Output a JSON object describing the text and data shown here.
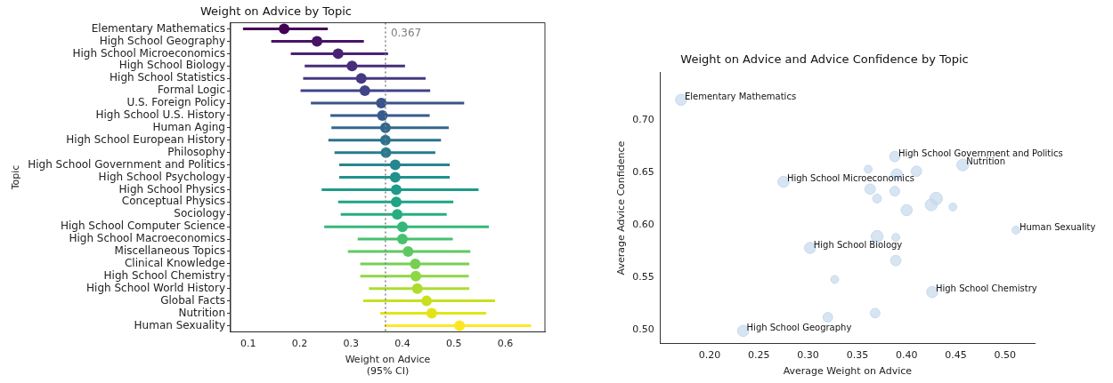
{
  "chart_data": [
    {
      "type": "scatter",
      "orientation": "horizontal",
      "title": "Weight on Advice by Topic",
      "xlabel": "Weight on Advice\n(95% CI)",
      "ylabel": "Topic",
      "categories": [
        "Elementary Mathematics",
        "High School Geography",
        "High School Microeconomics",
        "High School Biology",
        "High School Statistics",
        "Formal Logic",
        "U.S. Foreign Policy",
        "High School U.S. History",
        "Human Aging",
        "High School European History",
        "Philosophy",
        "High School Government and Politics",
        "High School Psychology",
        "High School Physics",
        "Conceptual Physics",
        "Sociology",
        "High School Computer Science",
        "High School Macroeconomics",
        "Miscellaneous Topics",
        "Clinical Knowledge",
        "High School Chemistry",
        "High School World History",
        "Global Facts",
        "Nutrition",
        "Human Sexuality"
      ],
      "values": [
        0.17,
        0.234,
        0.275,
        0.302,
        0.32,
        0.327,
        0.359,
        0.361,
        0.367,
        0.367,
        0.368,
        0.386,
        0.386,
        0.388,
        0.388,
        0.39,
        0.4,
        0.4,
        0.411,
        0.425,
        0.426,
        0.429,
        0.447,
        0.457,
        0.511
      ],
      "errors": [
        [
          0.09,
          0.255
        ],
        [
          0.145,
          0.325
        ],
        [
          0.183,
          0.372
        ],
        [
          0.21,
          0.405
        ],
        [
          0.207,
          0.445
        ],
        [
          0.202,
          0.454
        ],
        [
          0.222,
          0.52
        ],
        [
          0.26,
          0.453
        ],
        [
          0.262,
          0.49
        ],
        [
          0.256,
          0.475
        ],
        [
          0.268,
          0.464
        ],
        [
          0.277,
          0.492
        ],
        [
          0.277,
          0.492
        ],
        [
          0.243,
          0.548
        ],
        [
          0.275,
          0.499
        ],
        [
          0.28,
          0.486
        ],
        [
          0.248,
          0.568
        ],
        [
          0.313,
          0.498
        ],
        [
          0.294,
          0.532
        ],
        [
          0.318,
          0.53
        ],
        [
          0.318,
          0.529
        ],
        [
          0.335,
          0.53
        ],
        [
          0.324,
          0.58
        ],
        [
          0.357,
          0.563
        ],
        [
          0.365,
          0.65
        ]
      ],
      "colors": [
        "#440154",
        "#471365",
        "#482374",
        "#472d7b",
        "#443983",
        "#414487",
        "#3b528b",
        "#375b8d",
        "#31688e",
        "#2c728e",
        "#287c8e",
        "#24868e",
        "#21918c",
        "#1f9a8a",
        "#20a486",
        "#27ad81",
        "#35b779",
        "#47c16e",
        "#5ec962",
        "#75d054",
        "#8fd744",
        "#addc30",
        "#c8e020",
        "#e3e418",
        "#fde725"
      ],
      "xlim": [
        0.066,
        0.677
      ],
      "xticks": [
        0.1,
        0.2,
        0.3,
        0.4,
        0.5,
        0.6
      ],
      "ref_lines": [
        {
          "axis": "x",
          "value": 0.367,
          "label": "0.367",
          "color": "#808080",
          "line_style": "dotted"
        }
      ],
      "marker": "circle",
      "grid": false,
      "legend": false
    },
    {
      "type": "bubble",
      "title": "Weight on Advice and Advice Confidence by Topic",
      "xlabel": "Average Weight on Advice",
      "ylabel": "Average Advice Confidence",
      "color": "#c5daee",
      "x": [
        0.171,
        0.388,
        0.457,
        0.275,
        0.361,
        0.39,
        0.41,
        0.363,
        0.388,
        0.37,
        0.43,
        0.425,
        0.447,
        0.4,
        0.511,
        0.37,
        0.389,
        0.302,
        0.389,
        0.327,
        0.426,
        0.368,
        0.32,
        0.234
      ],
      "values": [
        0.719,
        0.665,
        0.657,
        0.641,
        0.653,
        0.648,
        0.651,
        0.634,
        0.632,
        0.625,
        0.625,
        0.619,
        0.617,
        0.614,
        0.595,
        0.589,
        0.588,
        0.578,
        0.566,
        0.548,
        0.536,
        0.516,
        0.512,
        0.499
      ],
      "sizes": [
        0.8,
        0.7,
        0.9,
        0.8,
        0.4,
        0.8,
        0.7,
        0.7,
        0.6,
        0.5,
        1,
        0.9,
        0.4,
        0.8,
        0.4,
        0.9,
        0.4,
        0.8,
        0.7,
        0.4,
        0.8,
        0.6,
        0.6,
        0.8
      ],
      "annotations": [
        {
          "text": "Elementary Mathematics",
          "x": 0.171,
          "y": 0.719
        },
        {
          "text": "High School Government and Politics",
          "x": 0.388,
          "y": 0.665
        },
        {
          "text": "Nutrition",
          "x": 0.457,
          "y": 0.657
        },
        {
          "text": "High School Microeconomics",
          "x": 0.275,
          "y": 0.641
        },
        {
          "text": "Human Sexuality",
          "x": 0.511,
          "y": 0.595
        },
        {
          "text": "High School Biology",
          "x": 0.302,
          "y": 0.578
        },
        {
          "text": "High School Chemistry",
          "x": 0.426,
          "y": 0.536
        },
        {
          "text": "High School Geography",
          "x": 0.234,
          "y": 0.499
        }
      ],
      "xlim": [
        0.15,
        0.53
      ],
      "xticks": [
        {
          "value": 0.2,
          "label": "0.20"
        },
        {
          "value": 0.25,
          "label": "0.25"
        },
        {
          "value": 0.3,
          "label": "0.30"
        },
        {
          "value": 0.35,
          "label": "0.35"
        },
        {
          "value": 0.4,
          "label": "0.40"
        },
        {
          "value": 0.45,
          "label": "0.45"
        },
        {
          "value": 0.5,
          "label": "0.50"
        }
      ],
      "ylim": [
        0.487,
        0.745
      ],
      "yticks": [
        {
          "value": 0.5,
          "label": "0.50"
        },
        {
          "value": 0.55,
          "label": "0.55"
        },
        {
          "value": 0.6,
          "label": "0.60"
        },
        {
          "value": 0.65,
          "label": "0.65"
        },
        {
          "value": 0.7,
          "label": "0.70"
        }
      ],
      "grid": false,
      "legend": false
    }
  ]
}
